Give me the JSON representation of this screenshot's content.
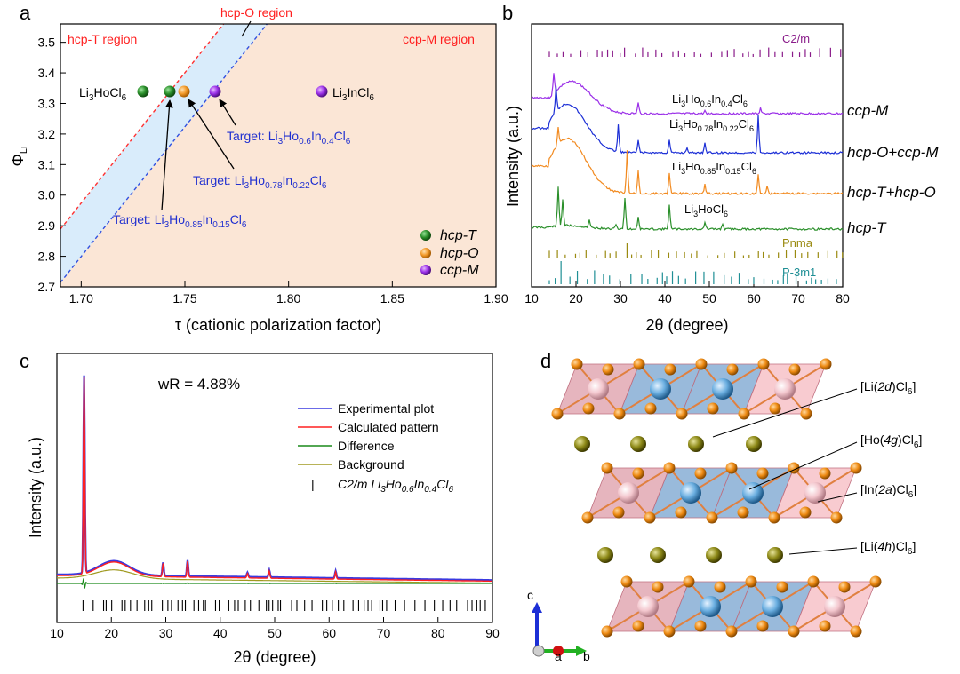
{
  "panels": {
    "a": {
      "letter": "a",
      "regions": {
        "hcp_T": "hcp-T region",
        "hcp_O": "hcp-O region",
        "ccp_M": "ccp-M region"
      },
      "region_colors": {
        "hcp_T": "#ffffff",
        "hcp_O": "#d9ecfb",
        "ccp_M": "#fbe6d6",
        "boundary_left": "#ff3030",
        "boundary_right": "#3050e0"
      },
      "ylabel": "Φ",
      "ylabel_sub": "Li",
      "xlabel": "τ (cationic polarization factor)",
      "xticks": [
        "1.70",
        "1.75",
        "1.80",
        "1.85",
        "1.90"
      ],
      "yticks": [
        "2.7",
        "2.8",
        "2.9",
        "3.0",
        "3.1",
        "3.2",
        "3.3",
        "3.4",
        "3.5"
      ],
      "compound_labels": {
        "ho": {
          "main": "Li",
          "sub1": "3",
          "mid": "HoCl",
          "sub2": "6"
        },
        "in": {
          "main": "Li",
          "sub1": "3",
          "mid": "InCl",
          "sub2": "6"
        }
      },
      "targets": [
        {
          "prefix": "Target: Li",
          "s1": "3",
          "a": "Ho",
          "s2": "0.6",
          "b": "In",
          "s3": "0.4",
          "c": "Cl",
          "s4": "6"
        },
        {
          "prefix": "Target: Li",
          "s1": "3",
          "a": "Ho",
          "s2": "0.78",
          "b": "In",
          "s3": "0.22",
          "c": "Cl",
          "s4": "6"
        },
        {
          "prefix": "Target: Li",
          "s1": "3",
          "a": "Ho",
          "s2": "0.85",
          "b": "In",
          "s3": "0.15",
          "c": "Cl",
          "s4": "6"
        }
      ],
      "legend": [
        {
          "label": "hcp-T",
          "color": "#2e8b2e"
        },
        {
          "label": "hcp-O",
          "color": "#f39a2a"
        },
        {
          "label": "ccp-M",
          "color": "#9b30e8"
        }
      ],
      "chart_data": {
        "type": "scatter",
        "xlabel": "τ (cationic polarization factor)",
        "ylabel": "Φ_Li",
        "xlim": [
          1.69,
          1.9
        ],
        "ylim": [
          2.7,
          3.56
        ],
        "series": [
          {
            "name": "hcp-T",
            "points": [
              {
                "x": 1.728,
                "y": 3.33,
                "label": "Li3HoCl6"
              },
              {
                "x": 1.741,
                "y": 3.33
              }
            ]
          },
          {
            "name": "hcp-O",
            "points": [
              {
                "x": 1.749,
                "y": 3.33
              }
            ]
          },
          {
            "name": "ccp-M",
            "points": [
              {
                "x": 1.764,
                "y": 3.33
              },
              {
                "x": 1.816,
                "y": 3.33,
                "label": "Li3InCl6"
              }
            ]
          }
        ]
      }
    },
    "b": {
      "letter": "b",
      "ylabel": "Intensity (a.u.)",
      "xlabel": "2θ (degree)",
      "xticks": [
        "10",
        "20",
        "30",
        "40",
        "50",
        "60",
        "70",
        "80"
      ],
      "ref_labels": {
        "c2m": "C2/m",
        "pnma": "Pnma",
        "p3m1": "P-3m1"
      },
      "curve_labels": {
        "ho06": {
          "a": "Li",
          "s1": "3",
          "b": "Ho",
          "s2": "0.6",
          "c": "In",
          "s3": "0.4",
          "d": "Cl",
          "s4": "6"
        },
        "ho078": {
          "a": "Li",
          "s1": "3",
          "b": "Ho",
          "s2": "0.78",
          "c": "In",
          "s3": "0.22",
          "d": "Cl",
          "s4": "6"
        },
        "ho085": {
          "a": "Li",
          "s1": "3",
          "b": "Ho",
          "s2": "0.85",
          "c": "In",
          "s3": "0.15",
          "d": "Cl",
          "s4": "6"
        },
        "ho": {
          "a": "Li",
          "s1": "3",
          "b": "HoCl",
          "s2": "6"
        }
      },
      "phase_labels": [
        "ccp-M",
        "hcp-O+ccp-M",
        "hcp-T+hcp-O",
        "hcp-T"
      ],
      "colors": {
        "purple": "#9b30e8",
        "blue": "#1c2fd6",
        "orange": "#f28a1f",
        "green": "#2a8f2a",
        "c2m": "#8a1c8a",
        "pnma": "#9a8a10",
        "p3m1": "#1f8f95"
      },
      "chart_data": {
        "type": "line",
        "xlabel": "2θ (degree)",
        "ylabel": "Intensity (a.u.)",
        "xlim": [
          10,
          80
        ],
        "series": [
          {
            "name": "ccp-M",
            "peaks_2theta": [
              15.0,
              34.0,
              61.5
            ]
          },
          {
            "name": "hcp-O+ccp-M",
            "peaks_2theta": [
              15.5,
              29.5,
              34.0,
              41.0,
              45.0,
              49.0,
              61.0
            ]
          },
          {
            "name": "hcp-T+hcp-O",
            "peaks_2theta": [
              16.0,
              31.5,
              34.0,
              41.0,
              49.0,
              61.0
            ]
          },
          {
            "name": "hcp-T",
            "peaks_2theta": [
              16.0,
              17.0,
              31.0,
              41.0,
              49.0
            ]
          }
        ]
      }
    },
    "c": {
      "letter": "c",
      "wr": "wR = 4.88%",
      "ylabel": "Intensity (a.u.)",
      "xlabel": "2θ (degree)",
      "xticks": [
        "10",
        "20",
        "30",
        "40",
        "50",
        "60",
        "70",
        "80",
        "90"
      ],
      "legend": [
        {
          "label": "Experimental plot",
          "color": "#3a3ae0"
        },
        {
          "label": "Calculated pattern",
          "color": "#ff2020"
        },
        {
          "label": "Difference",
          "color": "#1a8a1a"
        },
        {
          "label": "Background",
          "color": "#a09a20"
        }
      ],
      "tick_legend": {
        "marker": "|",
        "a": "C2/m Li",
        "s1": "3",
        "b": "Ho",
        "s2": "0.6",
        "c": "In",
        "s3": "0.4",
        "d": "Cl",
        "s4": "6"
      },
      "chart_data": {
        "type": "line",
        "xlabel": "2θ (degree)",
        "ylabel": "Intensity (a.u.)",
        "xlim": [
          10,
          90
        ],
        "annotation": "wR = 4.88%",
        "peaks_2theta": [
          15.0,
          29.5,
          34.0,
          45.0,
          49.0,
          61.2
        ]
      }
    },
    "d": {
      "letter": "d",
      "labels": [
        {
          "a": "[Li(",
          "b": "2d",
          "c": ")Cl",
          "s": "6",
          "d": "]"
        },
        {
          "a": "[Ho(",
          "b": "4g",
          "c": ")Cl",
          "s": "6",
          "d": "]"
        },
        {
          "a": "[In(",
          "b": "2a",
          "c": ")Cl",
          "s": "6",
          "d": "]"
        },
        {
          "a": "[Li(",
          "b": "4h",
          "c": ")Cl",
          "s": "6",
          "d": "]"
        }
      ],
      "axes": {
        "c": "c",
        "a": "a",
        "b": "b"
      }
    }
  }
}
